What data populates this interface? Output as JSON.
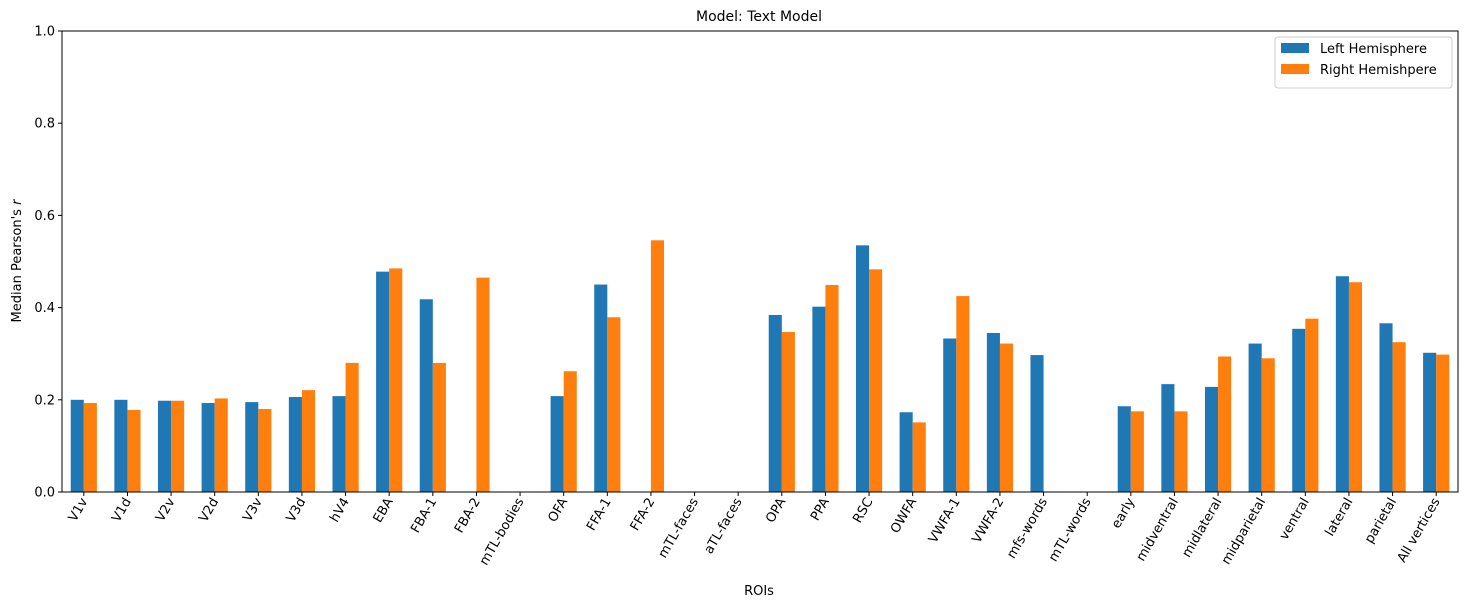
{
  "chart_data": {
    "type": "bar",
    "title": "Model: Text Model",
    "xlabel": "ROIs",
    "ylabel": "Median Pearson's r",
    "ylim": [
      0,
      1.0
    ],
    "yticks": [
      "0.0",
      "0.2",
      "0.4",
      "0.6",
      "0.8",
      "1.0"
    ],
    "grid": false,
    "legend_position": "top-right",
    "categories": [
      "V1v",
      "V1d",
      "V2v",
      "V2d",
      "V3v",
      "V3d",
      "hV4",
      "EBA",
      "FBA-1",
      "FBA-2",
      "mTL-bodies",
      "OFA",
      "FFA-1",
      "FFA-2",
      "mTL-faces",
      "aTL-faces",
      "OPA",
      "PPA",
      "RSC",
      "OWFA",
      "VWFA-1",
      "VWFA-2",
      "mfs-words",
      "mTL-words",
      "early",
      "midventral",
      "midlateral",
      "midparietal",
      "ventral",
      "lateral",
      "parietal",
      "All vertices"
    ],
    "series": [
      {
        "name": "Left Hemisphere",
        "color": "#1f77b4",
        "values": [
          0.2,
          0.2,
          0.198,
          0.193,
          0.195,
          0.206,
          0.208,
          0.478,
          0.418,
          null,
          null,
          0.208,
          0.45,
          null,
          null,
          null,
          0.384,
          0.402,
          0.535,
          0.173,
          0.333,
          0.345,
          0.297,
          null,
          0.186,
          0.234,
          0.228,
          0.322,
          0.354,
          0.468,
          0.366,
          0.302
        ]
      },
      {
        "name": "Right Hemishpere",
        "color": "#ff7f0e",
        "values": [
          0.193,
          0.178,
          0.198,
          0.203,
          0.18,
          0.221,
          0.28,
          0.485,
          0.28,
          0.465,
          null,
          0.262,
          0.379,
          0.546,
          null,
          null,
          0.347,
          0.449,
          0.483,
          0.151,
          0.425,
          0.322,
          null,
          null,
          0.175,
          0.175,
          0.294,
          0.29,
          0.376,
          0.455,
          0.325,
          0.298
        ]
      }
    ]
  }
}
